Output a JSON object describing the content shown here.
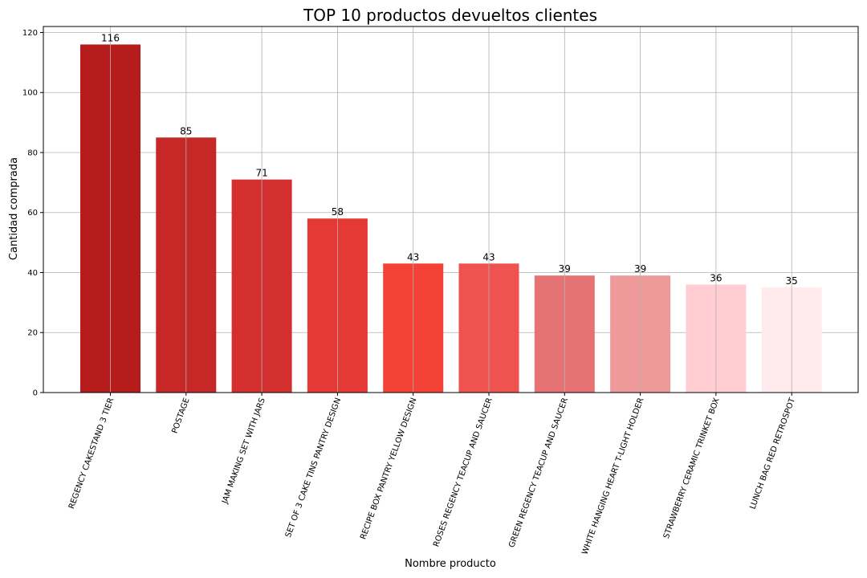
{
  "chart_data": {
    "type": "bar",
    "title": "TOP 10 productos devueltos clientes",
    "xlabel": "Nombre producto",
    "ylabel": "Cantidad comprada",
    "ylim": [
      0,
      122
    ],
    "yticks": [
      0,
      20,
      40,
      60,
      80,
      100,
      120
    ],
    "grid": true,
    "categories": [
      "REGENCY CAKESTAND 3 TIER",
      "POSTAGE",
      "JAM MAKING SET WITH JARS",
      "SET OF 3 CAKE TINS PANTRY DESIGN",
      "RECIPE BOX PANTRY YELLOW DESIGN",
      "ROSES REGENCY TEACUP AND SAUCER",
      "GREEN REGENCY TEACUP AND SAUCER",
      "WHITE HANGING HEART T-LIGHT HOLDER",
      "STRAWBERRY CERAMIC TRINKET BOX",
      "LUNCH BAG RED RETROSPOT"
    ],
    "values": [
      116,
      85,
      71,
      58,
      43,
      43,
      39,
      39,
      36,
      35
    ],
    "data_labels": [
      "116",
      "85",
      "71",
      "58",
      "43",
      "43",
      "39",
      "39",
      "36",
      "35"
    ],
    "colors": [
      "#b71c1c",
      "#c62828",
      "#d32f2f",
      "#e53935",
      "#f44336",
      "#ef5350",
      "#e57373",
      "#ef9a9a",
      "#ffcdd2",
      "#ffebee"
    ],
    "grid_color": "#b0b0b0"
  }
}
